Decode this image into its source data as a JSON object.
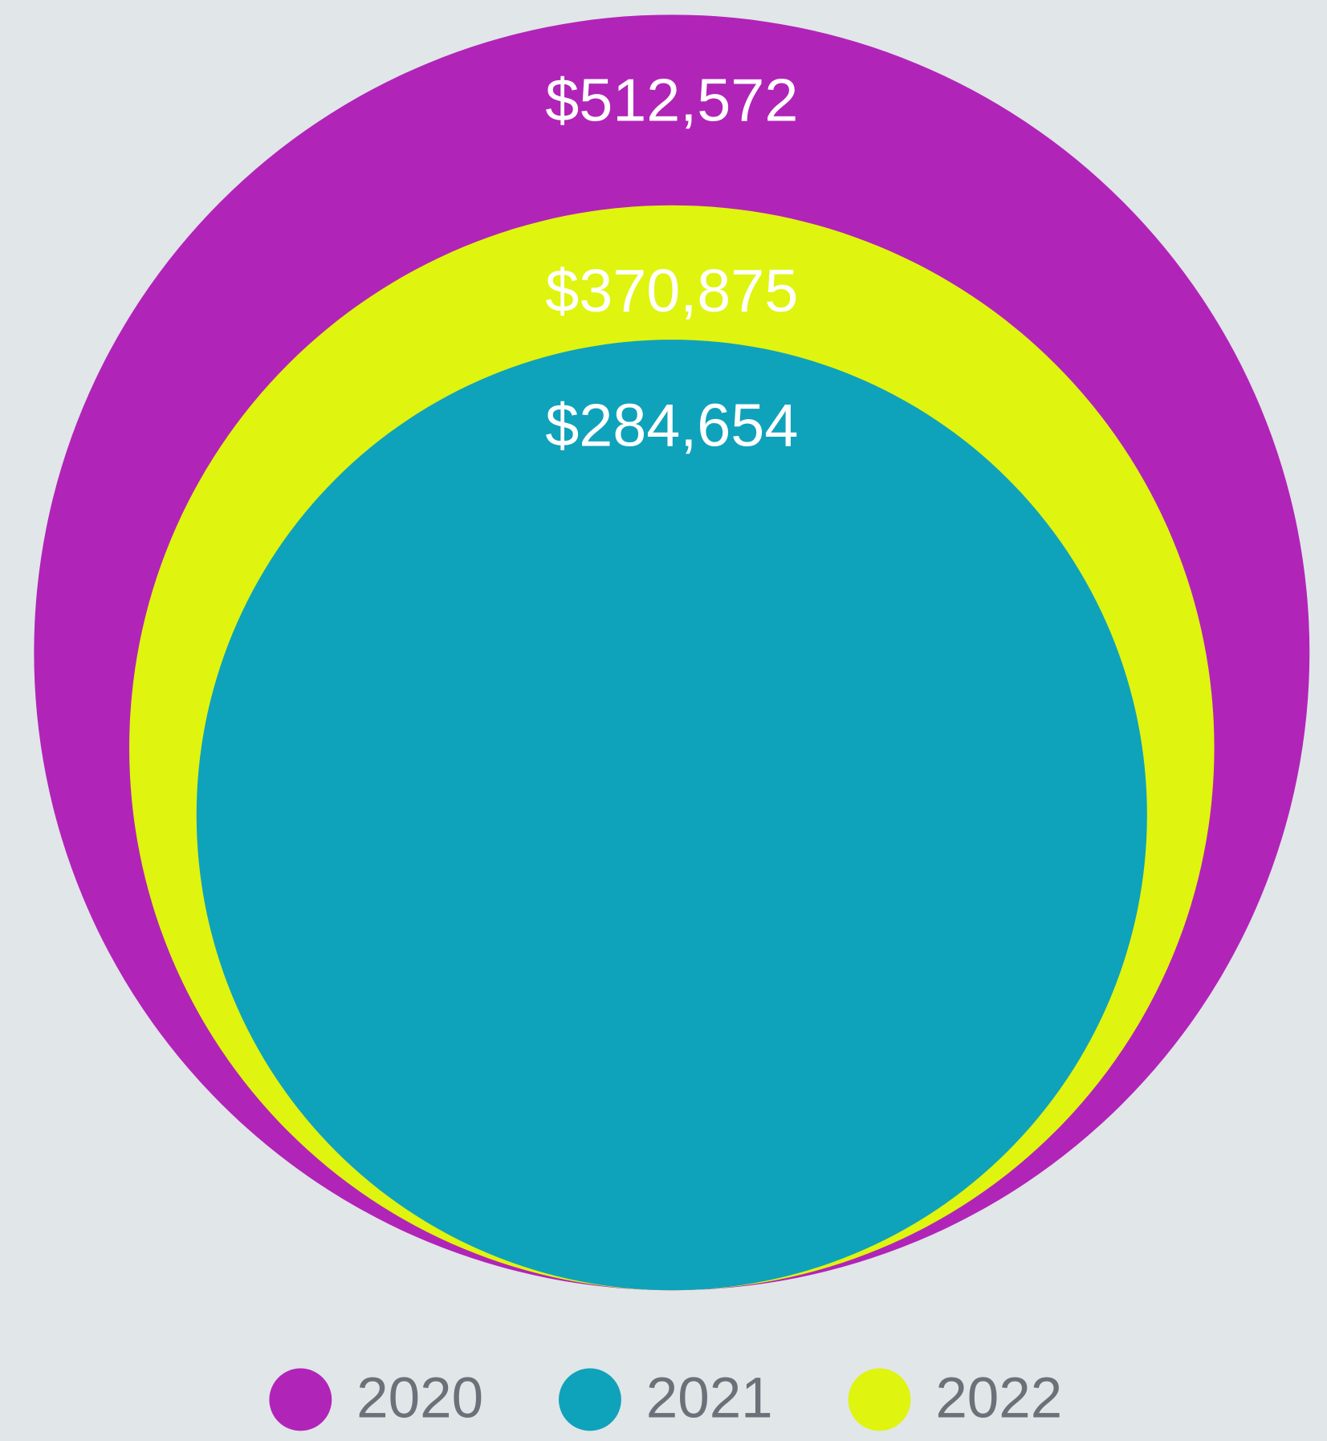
{
  "chart_data": {
    "type": "bubble",
    "categories": [
      "2020",
      "2021",
      "2022"
    ],
    "values": [
      512572,
      284654,
      370875
    ],
    "value_labels": [
      "$512,572",
      "$284,654",
      "$370,875"
    ],
    "colors": [
      "#b124b8",
      "#0fa2bb",
      "#dff40f"
    ],
    "legend": "bottom"
  }
}
